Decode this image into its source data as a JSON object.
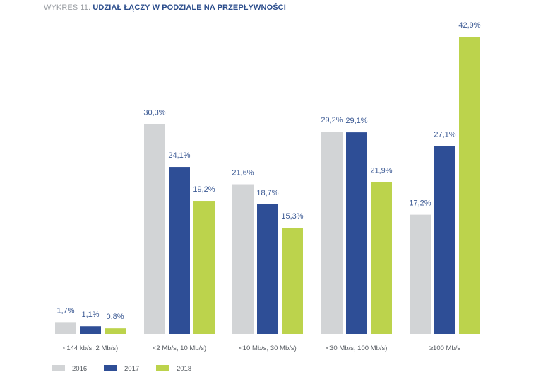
{
  "title": {
    "prefix": "WYKRES 11.",
    "main": "UDZIAŁ ŁĄCZY W PODZIALE NA PRZEPŁYWNOŚCI"
  },
  "chart_data": {
    "type": "bar",
    "title": "UDZIAŁ ŁĄCZY W PODZIALE NA PRZEPŁYWNOŚCI",
    "xlabel": "",
    "ylabel": "",
    "ylim": [
      0,
      45
    ],
    "grid": false,
    "legend_position": "bottom-left",
    "categories": [
      "<144 kb/s, 2 Mb/s)",
      "<2 Mb/s, 10 Mb/s)",
      "<10 Mb/s, 30 Mb/s)",
      "<30 Mb/s, 100 Mb/s)",
      "≥100 Mb/s"
    ],
    "series": [
      {
        "name": "2016",
        "color": "#d2d4d6",
        "values": [
          1.7,
          30.3,
          21.6,
          29.2,
          17.2
        ],
        "labels": [
          "1,7%",
          "30,3%",
          "21,6%",
          "29,2%",
          "17,2%"
        ]
      },
      {
        "name": "2017",
        "color": "#2e4e96",
        "values": [
          1.1,
          24.1,
          18.7,
          29.1,
          27.1
        ],
        "labels": [
          "1,1%",
          "24,1%",
          "18,7%",
          "29,1%",
          "27,1%"
        ]
      },
      {
        "name": "2018",
        "color": "#bcd34c",
        "values": [
          0.8,
          19.2,
          15.3,
          21.9,
          42.9
        ],
        "labels": [
          "0,8%",
          "19,2%",
          "15,3%",
          "21,9%",
          "42,9%"
        ]
      }
    ]
  }
}
